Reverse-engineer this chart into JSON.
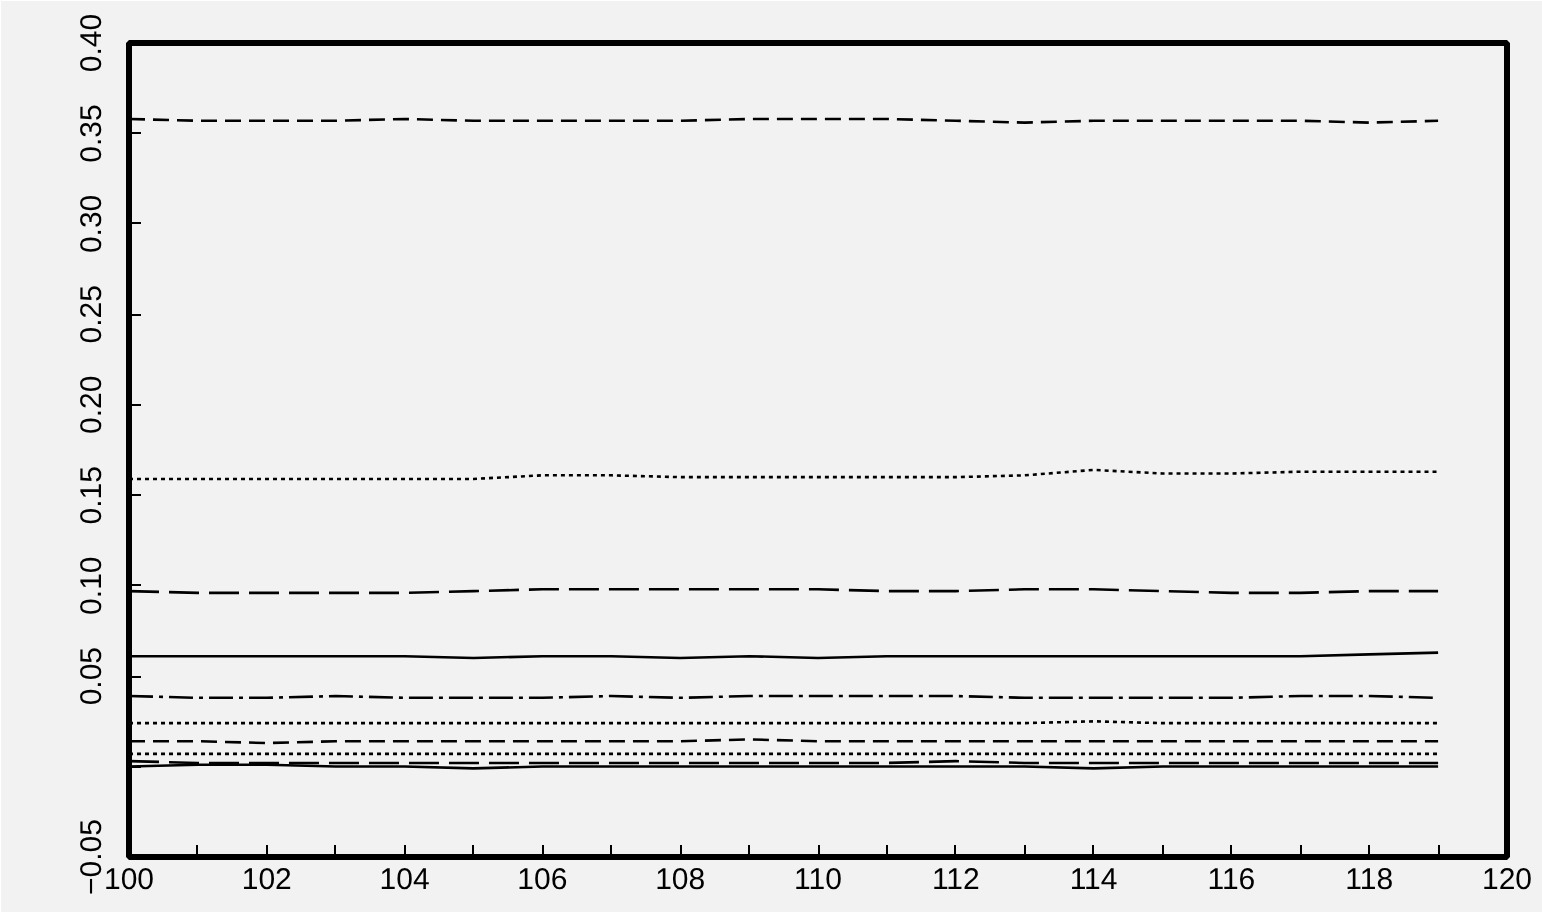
{
  "chart_data": {
    "type": "line",
    "x": [
      100,
      101,
      102,
      103,
      104,
      105,
      106,
      107,
      108,
      109,
      110,
      111,
      112,
      113,
      114,
      115,
      116,
      117,
      118,
      119
    ],
    "xlim": [
      100,
      120
    ],
    "xticks": [
      100,
      {
        "value": 101,
        "label": null
      },
      102,
      {
        "value": 103,
        "label": null
      },
      104,
      {
        "value": 105,
        "label": null
      },
      106,
      {
        "value": 107,
        "label": null
      },
      108,
      {
        "value": 109,
        "label": null
      },
      110,
      {
        "value": 111,
        "label": null
      },
      112,
      {
        "value": 113,
        "label": null
      },
      114,
      {
        "value": 115,
        "label": null
      },
      116,
      {
        "value": 117,
        "label": null
      },
      118,
      {
        "value": 119,
        "label": null
      },
      120
    ],
    "ylim": [
      -0.05,
      0.4
    ],
    "yticks": [
      {
        "value": -0.05,
        "label": "−0.05"
      },
      {
        "value": 0,
        "label": null
      },
      {
        "value": 0.05,
        "label": "0.05"
      },
      {
        "value": 0.1,
        "label": "0.10"
      },
      {
        "value": 0.15,
        "label": "0.15"
      },
      {
        "value": 0.2,
        "label": "0.20"
      },
      {
        "value": 0.25,
        "label": "0.25"
      },
      {
        "value": 0.3,
        "label": "0.30"
      },
      {
        "value": 0.35,
        "label": "0.35"
      },
      {
        "value": 0.4,
        "label": "0.40"
      }
    ],
    "grid": false,
    "legend": false,
    "series": [
      {
        "color": "#000000",
        "line_style": "dashed",
        "values": [
          0.358,
          0.357,
          0.357,
          0.357,
          0.358,
          0.357,
          0.357,
          0.357,
          0.357,
          0.358,
          0.358,
          0.358,
          0.357,
          0.356,
          0.357,
          0.357,
          0.357,
          0.357,
          0.356,
          0.357
        ]
      },
      {
        "color": "#000000",
        "line_style": "dotted",
        "values": [
          0.159,
          0.159,
          0.159,
          0.159,
          0.159,
          0.159,
          0.161,
          0.161,
          0.16,
          0.16,
          0.16,
          0.16,
          0.16,
          0.161,
          0.164,
          0.162,
          0.162,
          0.163,
          0.163,
          0.163
        ]
      },
      {
        "color": "#000000",
        "line_style": "longdash",
        "values": [
          0.097,
          0.096,
          0.096,
          0.096,
          0.096,
          0.097,
          0.098,
          0.098,
          0.098,
          0.098,
          0.098,
          0.097,
          0.097,
          0.098,
          0.098,
          0.097,
          0.096,
          0.096,
          0.097,
          0.097
        ]
      },
      {
        "color": "#000000",
        "line_style": "solid",
        "values": [
          0.061,
          0.061,
          0.061,
          0.061,
          0.061,
          0.06,
          0.061,
          0.061,
          0.06,
          0.061,
          0.06,
          0.061,
          0.061,
          0.061,
          0.061,
          0.061,
          0.061,
          0.061,
          0.062,
          0.063
        ]
      },
      {
        "color": "#000000",
        "line_style": "dashdot",
        "values": [
          0.039,
          0.038,
          0.038,
          0.039,
          0.038,
          0.038,
          0.038,
          0.039,
          0.038,
          0.039,
          0.039,
          0.039,
          0.039,
          0.038,
          0.038,
          0.038,
          0.038,
          0.039,
          0.039,
          0.038
        ]
      },
      {
        "color": "#000000",
        "line_style": "dotted",
        "values": [
          0.024,
          0.024,
          0.024,
          0.024,
          0.024,
          0.024,
          0.024,
          0.024,
          0.024,
          0.024,
          0.024,
          0.024,
          0.024,
          0.024,
          0.025,
          0.024,
          0.024,
          0.024,
          0.024,
          0.024
        ]
      },
      {
        "color": "#000000",
        "line_style": "dashed",
        "values": [
          0.014,
          0.014,
          0.013,
          0.014,
          0.014,
          0.014,
          0.014,
          0.014,
          0.014,
          0.015,
          0.014,
          0.014,
          0.014,
          0.014,
          0.014,
          0.014,
          0.014,
          0.014,
          0.014,
          0.014
        ]
      },
      {
        "color": "#000000",
        "line_style": "dotted",
        "values": [
          0.007,
          0.007,
          0.007,
          0.007,
          0.007,
          0.007,
          0.007,
          0.007,
          0.007,
          0.007,
          0.007,
          0.007,
          0.007,
          0.007,
          0.007,
          0.007,
          0.007,
          0.007,
          0.007,
          0.007
        ]
      },
      {
        "color": "#000000",
        "line_style": "longdash",
        "values": [
          0.003,
          0.002,
          0.002,
          0.002,
          0.002,
          0.002,
          0.002,
          0.002,
          0.002,
          0.002,
          0.002,
          0.002,
          0.003,
          0.002,
          0.002,
          0.002,
          0.002,
          0.002,
          0.002,
          0.002
        ]
      },
      {
        "color": "#000000",
        "line_style": "solid",
        "values": [
          0.0,
          0.001,
          0.001,
          0.0,
          0.0,
          -0.001,
          0.0,
          0.0,
          0.0,
          0.0,
          0.0,
          0.0,
          0.0,
          0.0,
          -0.001,
          0.0,
          0.0,
          0.0,
          0.0,
          0.0
        ]
      }
    ]
  }
}
